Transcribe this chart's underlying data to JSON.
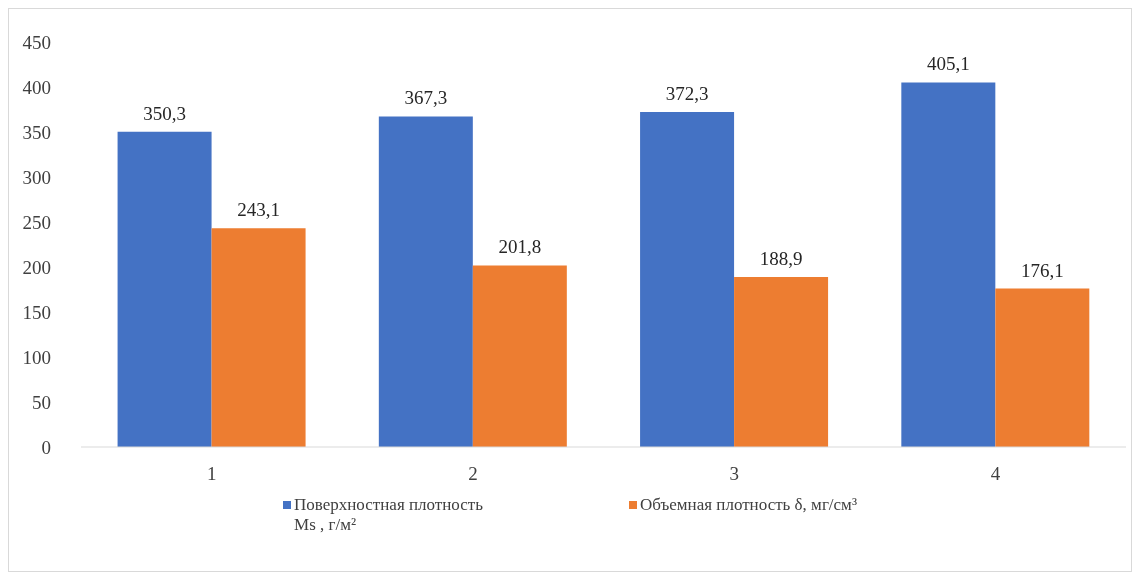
{
  "chart_data": {
    "type": "bar",
    "categories": [
      "1",
      "2",
      "3",
      "4"
    ],
    "series": [
      {
        "name": "Поверхностная плотность Ms , г/м²",
        "color": "#4472c4",
        "values": [
          350.3,
          367.3,
          372.3,
          405.1
        ],
        "value_labels": [
          "350,3",
          "367,3",
          "372,3",
          "405,1"
        ]
      },
      {
        "name": "Объемная плотность δ, мг/см³",
        "color": "#ed7d31",
        "values": [
          243.1,
          201.8,
          188.9,
          176.1
        ],
        "value_labels": [
          "243,1",
          "201,8",
          "188,9",
          "176,1"
        ]
      }
    ],
    "ylim": [
      0,
      450
    ],
    "yticks": [
      0,
      50,
      100,
      150,
      200,
      250,
      300,
      350,
      400,
      450
    ],
    "legend": "bottom"
  }
}
